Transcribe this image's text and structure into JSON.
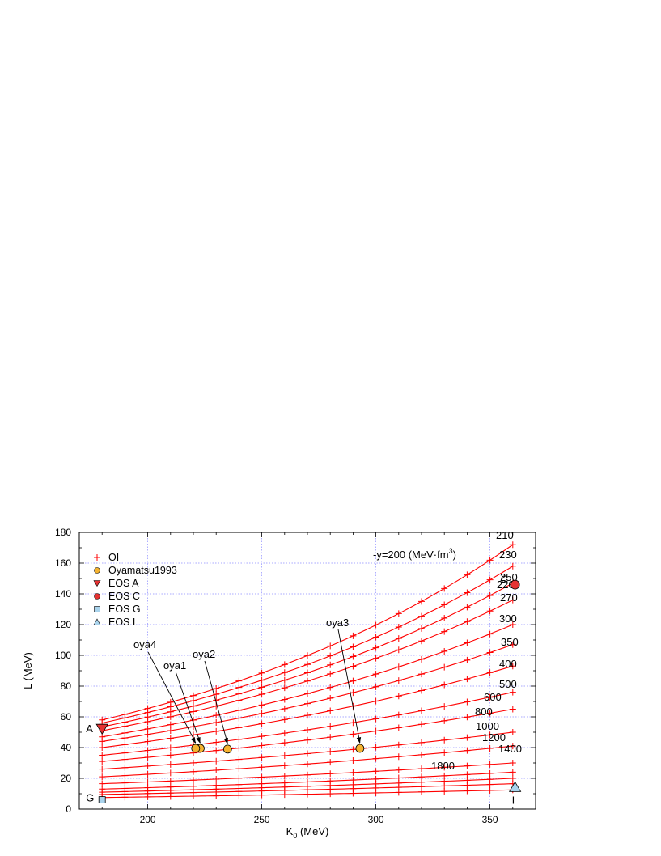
{
  "chart_data": {
    "type": "line",
    "title": "",
    "xlabel": "K",
    "xlabel_sub": "0",
    "xlabel_unit": " (MeV)",
    "ylabel": "L (MeV)",
    "xlim": [
      170,
      370
    ],
    "ylim": [
      0,
      180
    ],
    "xticks": [
      200,
      250,
      300,
      350
    ],
    "yticks": [
      0,
      20,
      40,
      60,
      80,
      100,
      120,
      140,
      160,
      180
    ],
    "grid": true,
    "legend_position": "top-left",
    "legend": [
      {
        "label": "OI",
        "marker": "plus",
        "color": "#ff0000"
      },
      {
        "label": "Oyamatsu1993",
        "marker": "circle",
        "color": "#f5b330"
      },
      {
        "label": "EOS A",
        "marker": "triangle-down",
        "color": "#e53232"
      },
      {
        "label": "EOS C",
        "marker": "circle",
        "color": "#e53232"
      },
      {
        "label": "EOS G",
        "marker": "square",
        "color": "#a9d3ec"
      },
      {
        "label": "EOS I",
        "marker": "triangle-up",
        "color": "#a9d3ec"
      }
    ],
    "oi_series": [
      {
        "y_label": "-y=200 (MeV·fm",
        "y_label_sup": "3",
        "y_label_end": ")",
        "x": [
          180,
          360
        ],
        "y": [
          58,
          172
        ]
      },
      {
        "y_label": "210",
        "x": [
          180,
          360
        ],
        "y": [
          56,
          158
        ]
      },
      {
        "y_label": "220",
        "x": [
          180,
          360
        ],
        "y": [
          53.5,
          147
        ]
      },
      {
        "y_label": "230",
        "x": [
          180,
          360
        ],
        "y": [
          51,
          136
        ]
      },
      {
        "y_label": "250",
        "x": [
          180,
          360
        ],
        "y": [
          47,
          120
        ]
      },
      {
        "y_label": "270",
        "x": [
          180,
          360
        ],
        "y": [
          44,
          107
        ]
      },
      {
        "y_label": "300",
        "x": [
          180,
          360
        ],
        "y": [
          40,
          93
        ]
      },
      {
        "y_label": "350",
        "x": [
          180,
          360
        ],
        "y": [
          35,
          76
        ]
      },
      {
        "y_label": "400",
        "x": [
          180,
          360
        ],
        "y": [
          31,
          65
        ]
      },
      {
        "y_label": "500",
        "x": [
          180,
          360
        ],
        "y": [
          26,
          50
        ]
      },
      {
        "y_label": "600",
        "x": [
          180,
          360
        ],
        "y": [
          21,
          41
        ]
      },
      {
        "y_label": "800",
        "x": [
          180,
          360
        ],
        "y": [
          16.5,
          30
        ]
      },
      {
        "y_label": "1000",
        "x": [
          180,
          360
        ],
        "y": [
          13,
          24
        ]
      },
      {
        "y_label": "1200",
        "x": [
          180,
          360
        ],
        "y": [
          11,
          20
        ]
      },
      {
        "y_label": "1400",
        "x": [
          180,
          360
        ],
        "y": [
          9.5,
          16.5
        ]
      },
      {
        "y_label": "1800",
        "x": [
          180,
          360
        ],
        "y": [
          7.5,
          12.5
        ]
      }
    ],
    "oyamatsu_points": [
      {
        "name": "oya1",
        "x": 223,
        "y": 39.5
      },
      {
        "name": "oya2",
        "x": 235,
        "y": 39
      },
      {
        "name": "oya3",
        "x": 293,
        "y": 39.5
      },
      {
        "name": "oya4",
        "x": 221,
        "y": 39.5
      }
    ],
    "eos_points": [
      {
        "name": "A",
        "x": 180,
        "y": 52,
        "marker": "triangle-down",
        "color": "#e53232"
      },
      {
        "name": "C",
        "x": 361,
        "y": 146,
        "marker": "circle",
        "color": "#e53232"
      },
      {
        "name": "G",
        "x": 180,
        "y": 6,
        "marker": "square",
        "color": "#a9d3ec"
      },
      {
        "name": "I",
        "x": 361,
        "y": 14,
        "marker": "triangle-up",
        "color": "#a9d3ec"
      }
    ],
    "colors": {
      "oi_line": "#ff0000",
      "grid": "#8c8cff",
      "oyamatsu": "#f5b330",
      "eos_red": "#e53232",
      "eos_blue": "#a9d3ec"
    }
  }
}
